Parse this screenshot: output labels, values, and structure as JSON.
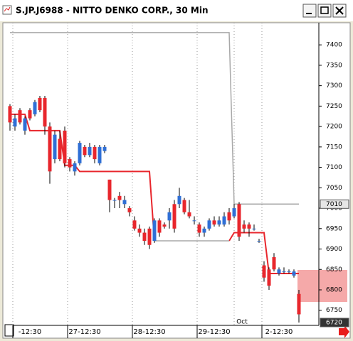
{
  "window": {
    "title": "S.JP.J6988 - NITTO DENKO CORP., 30 Min"
  },
  "chart_data": {
    "type": "candlestick",
    "categories": [
      null,
      null,
      null,
      null,
      "-12:30",
      null,
      null,
      null,
      null,
      null,
      null,
      null,
      null,
      null,
      null,
      "27-12:30",
      null,
      null,
      null,
      null,
      null,
      null,
      null,
      null,
      null,
      null,
      null,
      null,
      "28-12:30",
      null,
      null,
      null,
      null,
      null,
      null,
      null,
      null,
      null,
      null,
      null,
      null,
      "29-12:30",
      null,
      null,
      null,
      null,
      null,
      null,
      null,
      null,
      null,
      null,
      null,
      null,
      "2-12:30",
      null,
      null,
      null,
      null
    ],
    "open": [
      7250,
      7200,
      7240,
      7190,
      7240,
      7230,
      7270,
      7270,
      7200,
      7120,
      7170,
      7190,
      7120,
      7090,
      7110,
      7150,
      7130,
      7150,
      7110,
      7140,
      7070,
      7020,
      7030,
      7010,
      7000,
      6970,
      6950,
      6940,
      6950,
      6920,
      6970,
      6960,
      6970,
      7010,
      7010,
      7020,
      6990,
      6970,
      6960,
      6940,
      6950,
      6970,
      6960,
      6960,
      6990,
      6980,
      7010,
      6960,
      6960,
      6950,
      6920,
      6860,
      6850,
      6880,
      6840,
      6845,
      6845,
      6835,
      6790
    ],
    "high": [
      7255,
      7230,
      7245,
      7225,
      7245,
      7265,
      7275,
      7275,
      7210,
      7190,
      7190,
      7200,
      7125,
      7115,
      7165,
      7155,
      7160,
      7155,
      7155,
      7155,
      7070,
      7025,
      7040,
      7030,
      7005,
      6980,
      6960,
      6950,
      6955,
      6975,
      6975,
      6965,
      7000,
      7020,
      7050,
      7025,
      7020,
      6980,
      6965,
      6955,
      6975,
      6980,
      6980,
      6990,
      7000,
      7010,
      7015,
      6970,
      6965,
      6960,
      6925,
      6870,
      6855,
      6890,
      6855,
      6855,
      6850,
      6850,
      6800
    ],
    "low": [
      7190,
      7190,
      7205,
      7180,
      7215,
      7225,
      7235,
      7180,
      7060,
      7110,
      7115,
      7100,
      7090,
      7080,
      7105,
      7125,
      7125,
      7110,
      7105,
      7135,
      6990,
      7000,
      7000,
      7000,
      6980,
      6945,
      6930,
      6910,
      6900,
      6915,
      6930,
      6950,
      6950,
      6940,
      7000,
      6985,
      6975,
      6960,
      6930,
      6930,
      6945,
      6955,
      6955,
      6955,
      6960,
      6975,
      6920,
      6940,
      6930,
      6945,
      6915,
      6820,
      6800,
      6845,
      6835,
      6840,
      6840,
      6830,
      6720
    ],
    "close": [
      7210,
      7220,
      7210,
      7220,
      7220,
      7260,
      7240,
      7200,
      7090,
      7180,
      7120,
      7110,
      7100,
      7110,
      7160,
      7130,
      7150,
      7120,
      7150,
      7150,
      7020,
      7020,
      7020,
      7020,
      6990,
      6950,
      6940,
      6920,
      6910,
      6970,
      6940,
      6955,
      6990,
      6950,
      7030,
      6990,
      6980,
      6970,
      6940,
      6950,
      6970,
      6960,
      6970,
      6980,
      6970,
      7000,
      6930,
      6950,
      6950,
      6950,
      6920,
      6830,
      6810,
      6850,
      6850,
      6845,
      6845,
      6845,
      6740
    ],
    "up_color": "#2f6fd6",
    "down_color": "#e8262c",
    "series": [
      {
        "color": "#e8262c",
        "values": [
          7230,
          7230,
          7230,
          7230,
          7190,
          7190,
          7190,
          7190,
          7190,
          7190,
          7190,
          7105,
          7105,
          7105,
          7090,
          7090,
          7090,
          7090,
          7090,
          7090,
          7090,
          7090,
          7090,
          7090,
          7090,
          7090,
          7090,
          7090,
          7090,
          6920,
          null,
          null,
          null,
          null,
          null,
          null,
          null,
          null,
          null,
          null,
          null,
          null,
          null,
          null,
          6920,
          6940,
          6940,
          6940,
          6940,
          6940,
          6940,
          6940,
          6840,
          6840,
          6840,
          6840,
          6840,
          6840,
          6840
        ]
      },
      {
        "color": "#a8a8a8",
        "values": [
          null,
          null,
          null,
          null,
          null,
          null,
          null,
          null,
          null,
          null,
          null,
          null,
          null,
          null,
          null,
          null,
          null,
          null,
          null,
          null,
          null,
          null,
          null,
          null,
          null,
          null,
          null,
          null,
          null,
          6920,
          6920,
          6920,
          6920,
          6920,
          6920,
          6920,
          6920,
          6920,
          6920,
          6920,
          6920,
          6920,
          6920,
          6920,
          6920,
          null,
          null,
          null,
          null,
          null,
          null,
          null,
          null,
          null,
          null,
          null,
          null,
          null,
          null
        ]
      },
      {
        "color": "#a8a8a8",
        "values": [
          7430,
          7430,
          7430,
          7430,
          7430,
          7430,
          7430,
          7430,
          7430,
          7430,
          7430,
          7430,
          7430,
          7430,
          7430,
          7430,
          7430,
          7430,
          7430,
          7430,
          7430,
          7430,
          7430,
          7430,
          7430,
          7430,
          7430,
          7430,
          7430,
          7430,
          7430,
          7430,
          7430,
          7430,
          7430,
          7430,
          7430,
          7430,
          7430,
          7430,
          7430,
          7430,
          7430,
          7430,
          7430,
          7010,
          7010,
          7010,
          7010,
          7010,
          7010,
          7010,
          7010,
          7010,
          7010,
          7010,
          7010,
          7010,
          7010
        ]
      }
    ],
    "month_label": "Oct",
    "ylim": [
      6713,
      7449
    ],
    "yticks": [
      6750,
      6800,
      6850,
      6900,
      6950,
      7000,
      7050,
      7100,
      7150,
      7200,
      7250,
      7300,
      7350,
      7400
    ],
    "markers": [
      {
        "value": 7010,
        "style": "light"
      },
      {
        "value": 6720,
        "style": "dark"
      }
    ]
  }
}
